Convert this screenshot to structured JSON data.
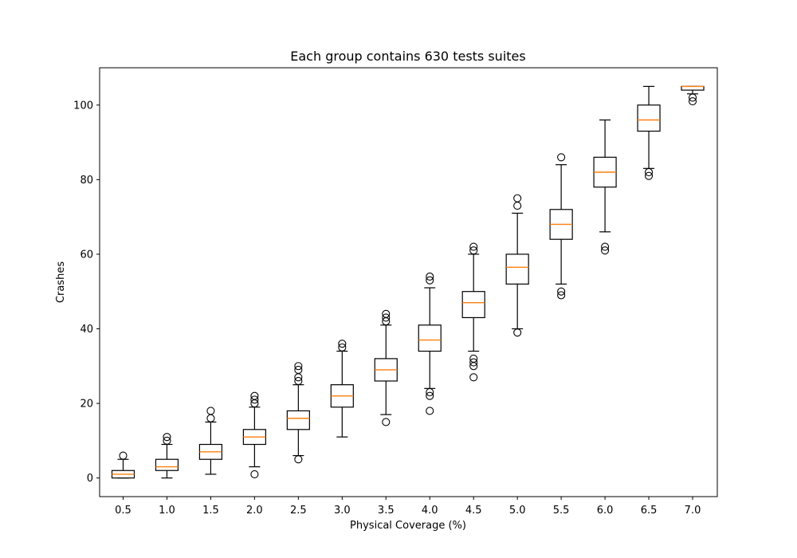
{
  "chart_data": {
    "type": "box",
    "title": "Each group contains 630 tests suites",
    "xlabel": "Physical Coverage (%)",
    "ylabel": "Crashes",
    "ylim": [
      -5,
      110
    ],
    "yticks": [
      0,
      20,
      40,
      60,
      80,
      100
    ],
    "grid": false,
    "colors": {
      "box": "#000000",
      "median": "#ff7f0e",
      "flier": "#000000"
    },
    "groups": [
      {
        "label": "0.5",
        "whisker_low": 0,
        "q1": 0,
        "median": 1,
        "q3": 2,
        "whisker_high": 5,
        "outliers": [
          6
        ]
      },
      {
        "label": "1.0",
        "whisker_low": 0,
        "q1": 2,
        "median": 3,
        "q3": 5,
        "whisker_high": 9,
        "outliers": [
          10,
          11
        ]
      },
      {
        "label": "1.5",
        "whisker_low": 1,
        "q1": 5,
        "median": 7,
        "q3": 9,
        "whisker_high": 15,
        "outliers": [
          16,
          18
        ]
      },
      {
        "label": "2.0",
        "whisker_low": 3,
        "q1": 9,
        "median": 11,
        "q3": 13,
        "whisker_high": 19,
        "outliers": [
          1,
          20,
          21,
          22
        ]
      },
      {
        "label": "2.5",
        "whisker_low": 6,
        "q1": 13,
        "median": 16,
        "q3": 18,
        "whisker_high": 25,
        "outliers": [
          5,
          26,
          27,
          29,
          30
        ]
      },
      {
        "label": "3.0",
        "whisker_low": 11,
        "q1": 19,
        "median": 22,
        "q3": 25,
        "whisker_high": 34,
        "outliers": [
          35,
          36
        ]
      },
      {
        "label": "3.5",
        "whisker_low": 17,
        "q1": 26,
        "median": 29,
        "q3": 32,
        "whisker_high": 41,
        "outliers": [
          15,
          42,
          43,
          44
        ]
      },
      {
        "label": "4.0",
        "whisker_low": 24,
        "q1": 34,
        "median": 37,
        "q3": 41,
        "whisker_high": 51,
        "outliers": [
          18,
          22,
          23,
          53,
          54
        ]
      },
      {
        "label": "4.5",
        "whisker_low": 34,
        "q1": 43,
        "median": 47,
        "q3": 50,
        "whisker_high": 60,
        "outliers": [
          27,
          30,
          31,
          32,
          61,
          62
        ]
      },
      {
        "label": "5.0",
        "whisker_low": 40,
        "q1": 52,
        "median": 56.5,
        "q3": 60,
        "whisker_high": 71,
        "outliers": [
          39,
          73,
          75
        ]
      },
      {
        "label": "5.5",
        "whisker_low": 52,
        "q1": 64,
        "median": 68,
        "q3": 72,
        "whisker_high": 84,
        "outliers": [
          49,
          50,
          86
        ]
      },
      {
        "label": "6.0",
        "whisker_low": 66,
        "q1": 78,
        "median": 82,
        "q3": 86,
        "whisker_high": 96,
        "outliers": [
          61,
          62
        ]
      },
      {
        "label": "6.5",
        "whisker_low": 83,
        "q1": 93,
        "median": 96,
        "q3": 100,
        "whisker_high": 105,
        "outliers": [
          81,
          82
        ]
      },
      {
        "label": "7.0",
        "whisker_low": 103,
        "q1": 104,
        "median": 105,
        "q3": 105,
        "whisker_high": 105,
        "outliers": [
          101,
          102
        ]
      }
    ]
  }
}
